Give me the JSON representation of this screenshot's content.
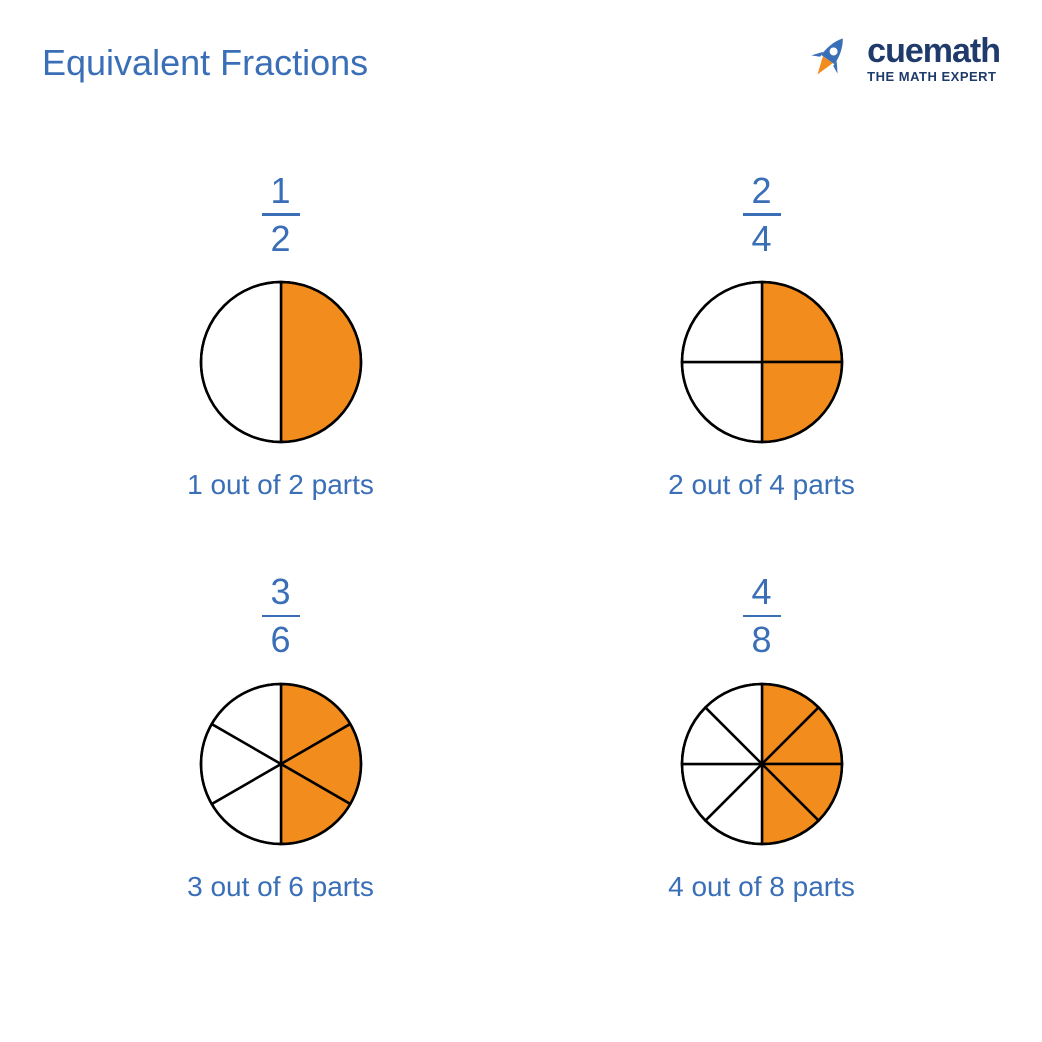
{
  "title": "Equivalent Fractions",
  "colors": {
    "blue": "#3a6fb7",
    "orange": "#f28c1c",
    "stroke": "#000000",
    "logo_text": "#1f3b6b",
    "logo_tag": "#1f3b6b",
    "logo_rocket_body": "#3a6fb7",
    "logo_rocket_flame": "#f28c1c",
    "white": "#ffffff"
  },
  "logo": {
    "brand": "cuemath",
    "tagline": "THE MATH EXPERT"
  },
  "pie_style": {
    "radius": 80,
    "stroke_width": 2.5,
    "fill_color": "#f28c1c",
    "empty_color": "#ffffff",
    "stroke_color": "#000000"
  },
  "fraction_style": {
    "fontsize": 36,
    "color": "#3a6fb7",
    "bar_color": "#3a6fb7"
  },
  "caption_style": {
    "fontsize": 28,
    "color": "#3a6fb7"
  },
  "items": [
    {
      "numerator": "1",
      "denominator": "2",
      "total": 2,
      "filled": 1,
      "caption": "1 out of 2 parts"
    },
    {
      "numerator": "2",
      "denominator": "4",
      "total": 4,
      "filled": 2,
      "caption": "2 out of 4 parts"
    },
    {
      "numerator": "3",
      "denominator": "6",
      "total": 6,
      "filled": 3,
      "caption": "3 out of 6 parts"
    },
    {
      "numerator": "4",
      "denominator": "8",
      "total": 8,
      "filled": 4,
      "caption": "4 out of 8 parts"
    }
  ]
}
